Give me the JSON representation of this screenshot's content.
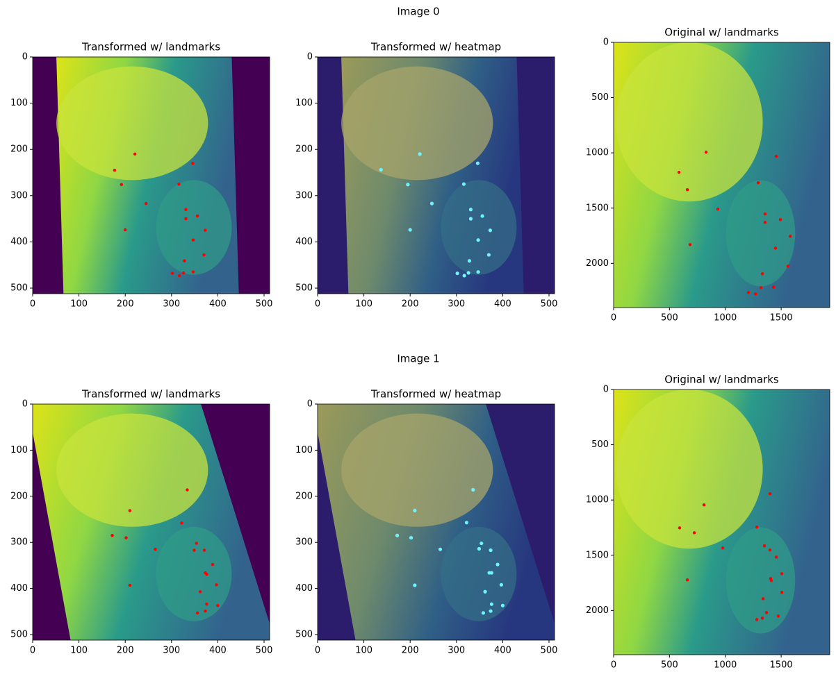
{
  "row_titles": [
    "Image 0",
    "Image 1"
  ],
  "chart_data": [
    {
      "type": "scatter",
      "title": "Transformed w/ landmarks",
      "color": "#ff0000",
      "x": [
        221,
        177,
        192,
        245,
        346,
        316,
        331,
        356,
        331,
        373,
        200,
        347,
        370,
        328,
        347,
        302,
        317,
        326
      ],
      "values": [
        210,
        245,
        276,
        317,
        230,
        275,
        330,
        344,
        350,
        375,
        374,
        396,
        428,
        441,
        465,
        468,
        473,
        467
      ],
      "xlim": [
        0,
        512
      ],
      "ylim": [
        512,
        0
      ],
      "xticks": [
        0,
        100,
        200,
        300,
        400,
        500
      ],
      "yticks": [
        0,
        100,
        200,
        300,
        400,
        500
      ]
    },
    {
      "type": "scatter",
      "title": "Transformed w/ heatmap",
      "color": "#6ff3ff",
      "x": [
        221,
        137,
        195,
        247,
        346,
        316,
        331,
        356,
        331,
        373,
        200,
        347,
        370,
        328,
        347,
        302,
        317,
        326
      ],
      "values": [
        210,
        244,
        276,
        317,
        230,
        275,
        330,
        344,
        350,
        375,
        374,
        396,
        428,
        441,
        465,
        468,
        473,
        467
      ],
      "xlim": [
        0,
        512
      ],
      "ylim": [
        512,
        0
      ],
      "xticks": [
        0,
        100,
        200,
        300,
        400,
        500
      ],
      "yticks": [
        0,
        100,
        200,
        300,
        400,
        500
      ]
    },
    {
      "type": "scatter",
      "title": "Original w/ landmarks",
      "color": "#ff0000",
      "x": [
        828,
        585,
        660,
        933,
        1456,
        1294,
        1356,
        1493,
        1356,
        1581,
        684,
        1450,
        1562,
        1332,
        1431,
        1207,
        1270,
        1319
      ],
      "values": [
        994,
        1176,
        1333,
        1509,
        1031,
        1270,
        1553,
        1604,
        1629,
        1755,
        1830,
        1862,
        2025,
        2094,
        2214,
        2264,
        2277,
        2220
      ],
      "xlim": [
        0,
        1935
      ],
      "ylim": [
        2400,
        0
      ],
      "xticks": [
        0,
        500,
        1000,
        1500
      ],
      "yticks": [
        0,
        500,
        1000,
        1500,
        2000
      ]
    },
    {
      "type": "scatter",
      "title": "Transformed w/ landmarks",
      "color": "#ff0000",
      "x": [
        210,
        334,
        322,
        172,
        202,
        265,
        354,
        349,
        371,
        389,
        373,
        376,
        397,
        210,
        362,
        376,
        400,
        373,
        356
      ],
      "values": [
        231,
        186,
        258,
        285,
        290,
        315,
        302,
        317,
        317,
        348,
        366,
        369,
        392,
        393,
        407,
        434,
        437,
        449,
        453
      ],
      "xlim": [
        0,
        512
      ],
      "ylim": [
        512,
        0
      ],
      "xticks": [
        0,
        100,
        200,
        300,
        400,
        500
      ],
      "yticks": [
        0,
        100,
        200,
        300,
        400,
        500
      ]
    },
    {
      "type": "scatter",
      "title": "Transformed w/ heatmap",
      "color": "#6ff3ff",
      "x": [
        210,
        336,
        322,
        172,
        202,
        265,
        354,
        349,
        374,
        389,
        371,
        376,
        397,
        210,
        362,
        376,
        400,
        374,
        358
      ],
      "values": [
        231,
        186,
        257,
        285,
        290,
        315,
        302,
        314,
        317,
        348,
        366,
        366,
        392,
        393,
        407,
        434,
        437,
        449,
        453
      ],
      "xlim": [
        0,
        512
      ],
      "ylim": [
        512,
        0
      ],
      "xticks": [
        0,
        100,
        200,
        300,
        400,
        500
      ],
      "yticks": [
        0,
        100,
        200,
        300,
        400,
        500
      ]
    },
    {
      "type": "scatter",
      "title": "Original w/ landmarks",
      "color": "#ff0000",
      "x": [
        809,
        1400,
        1282,
        591,
        722,
        977,
        1350,
        1400,
        1456,
        1506,
        1406,
        1412,
        1506,
        660,
        1338,
        1369,
        1475,
        1282,
        1332
      ],
      "values": [
        1044,
        943,
        1245,
        1252,
        1296,
        1434,
        1415,
        1453,
        1516,
        1667,
        1711,
        1730,
        1836,
        1723,
        1893,
        2019,
        2050,
        2082,
        2069
      ],
      "xlim": [
        0,
        1935
      ],
      "ylim": [
        2400,
        0
      ],
      "xticks": [
        0,
        500,
        1000,
        1500
      ],
      "yticks": [
        0,
        500,
        1000,
        1500,
        2000
      ]
    }
  ]
}
